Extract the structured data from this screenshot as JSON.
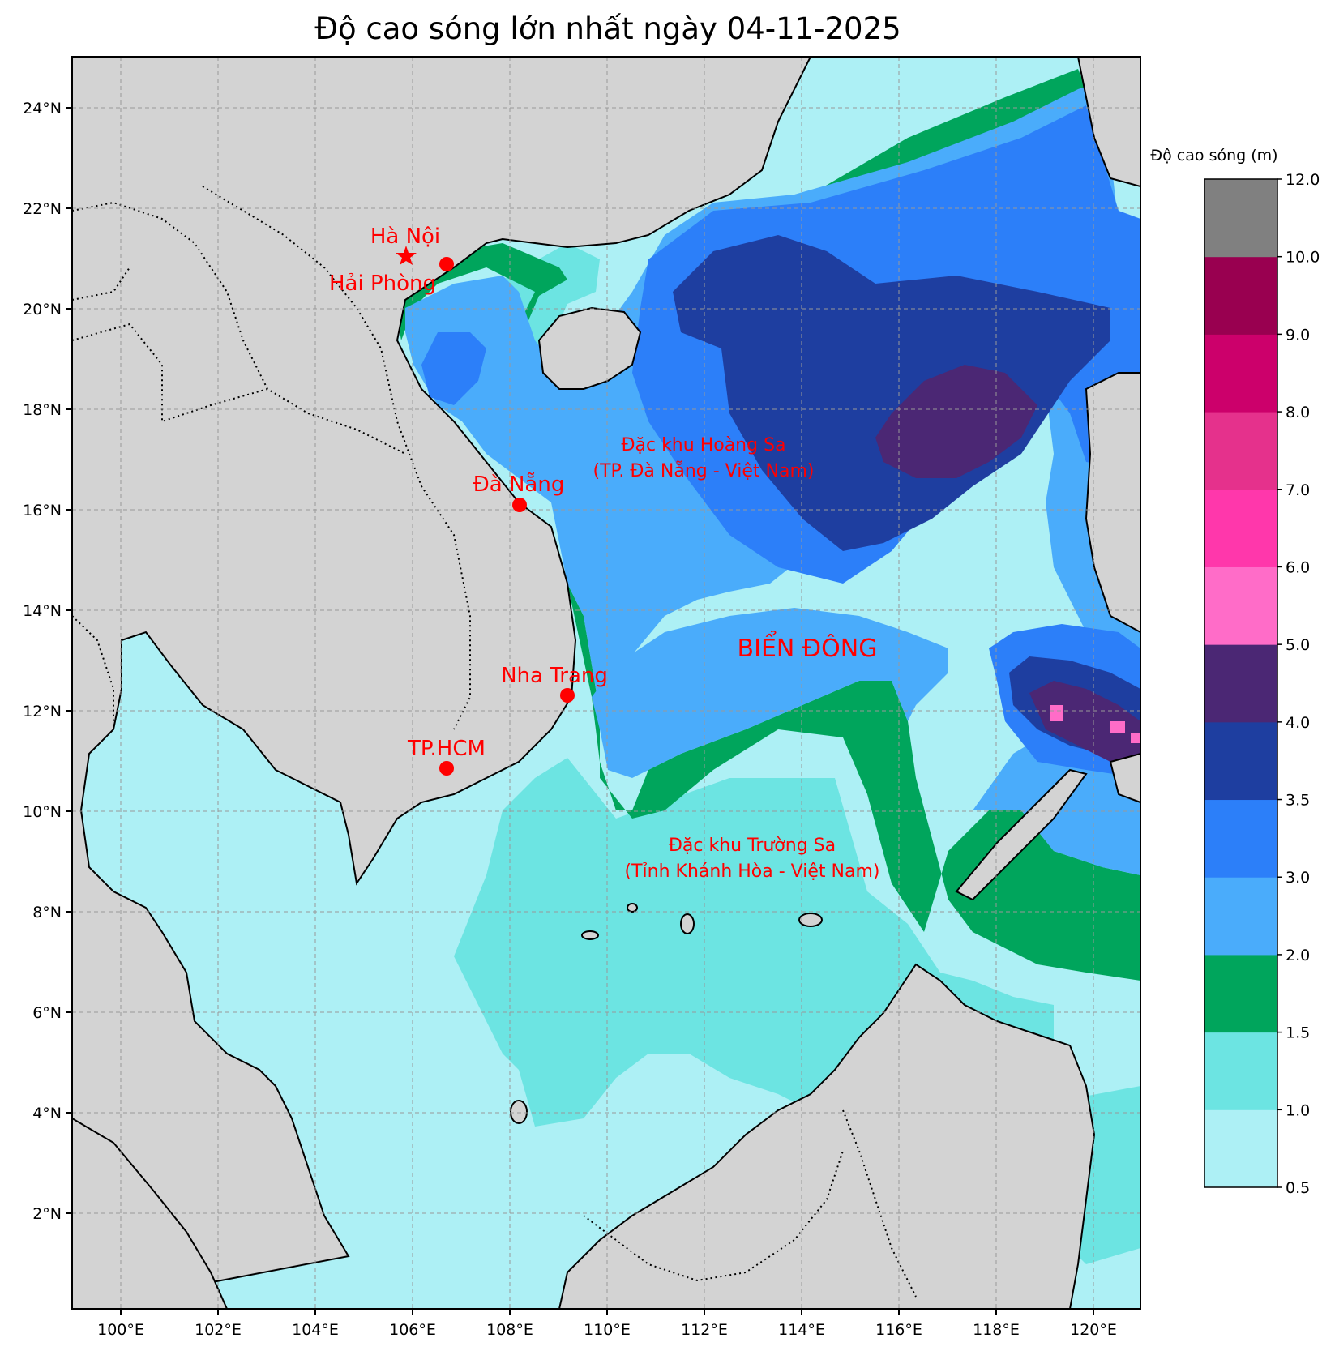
{
  "title": "Độ cao sóng lớn nhất ngày 04-11-2025",
  "colorbar": {
    "label": "Độ cao sóng (m)",
    "ticks": [
      "0.5",
      "1.0",
      "1.5",
      "2.0",
      "3.0",
      "3.5",
      "4.0",
      "5.0",
      "6.0",
      "7.0",
      "8.0",
      "9.0",
      "10.0",
      "12.0"
    ],
    "colors": [
      "#adf0f5",
      "#6ce4e2",
      "#00a55c",
      "#4aacfb",
      "#2c7ff9",
      "#1e3ea0",
      "#4b2774",
      "#ff6cc8",
      "#ff37ab",
      "#e5318c",
      "#cc006b",
      "#990050",
      "#808080"
    ]
  },
  "axes": {
    "x_ticks": [
      "100°E",
      "102°E",
      "104°E",
      "106°E",
      "108°E",
      "110°E",
      "112°E",
      "114°E",
      "116°E",
      "118°E",
      "120°E"
    ],
    "y_ticks": [
      "24°N",
      "22°N",
      "20°N",
      "18°N",
      "16°N",
      "14°N",
      "12°N",
      "10°N",
      "8°N",
      "6°N",
      "4°N",
      "2°N"
    ]
  },
  "cities": [
    {
      "name": "Hà Nội",
      "marker": "star"
    },
    {
      "name": "Hải Phòng",
      "marker": "dot"
    },
    {
      "name": "Đà Nẵng",
      "marker": "dot"
    },
    {
      "name": "Nha Trang",
      "marker": "dot"
    },
    {
      "name": "TP.HCM",
      "marker": "dot"
    }
  ],
  "regions": {
    "hoang_sa_1": "Đặc khu Hoàng Sa",
    "hoang_sa_2": "(TP. Đà Nẵng - Việt Nam)",
    "bien_dong": "BIỂN ĐÔNG",
    "truong_sa_1": "Đặc khu Trường Sa",
    "truong_sa_2": "(Tỉnh Khánh Hòa - Việt Nam)"
  },
  "colors": {
    "land": "#d3d3d3",
    "label_red": "#ff0000"
  }
}
